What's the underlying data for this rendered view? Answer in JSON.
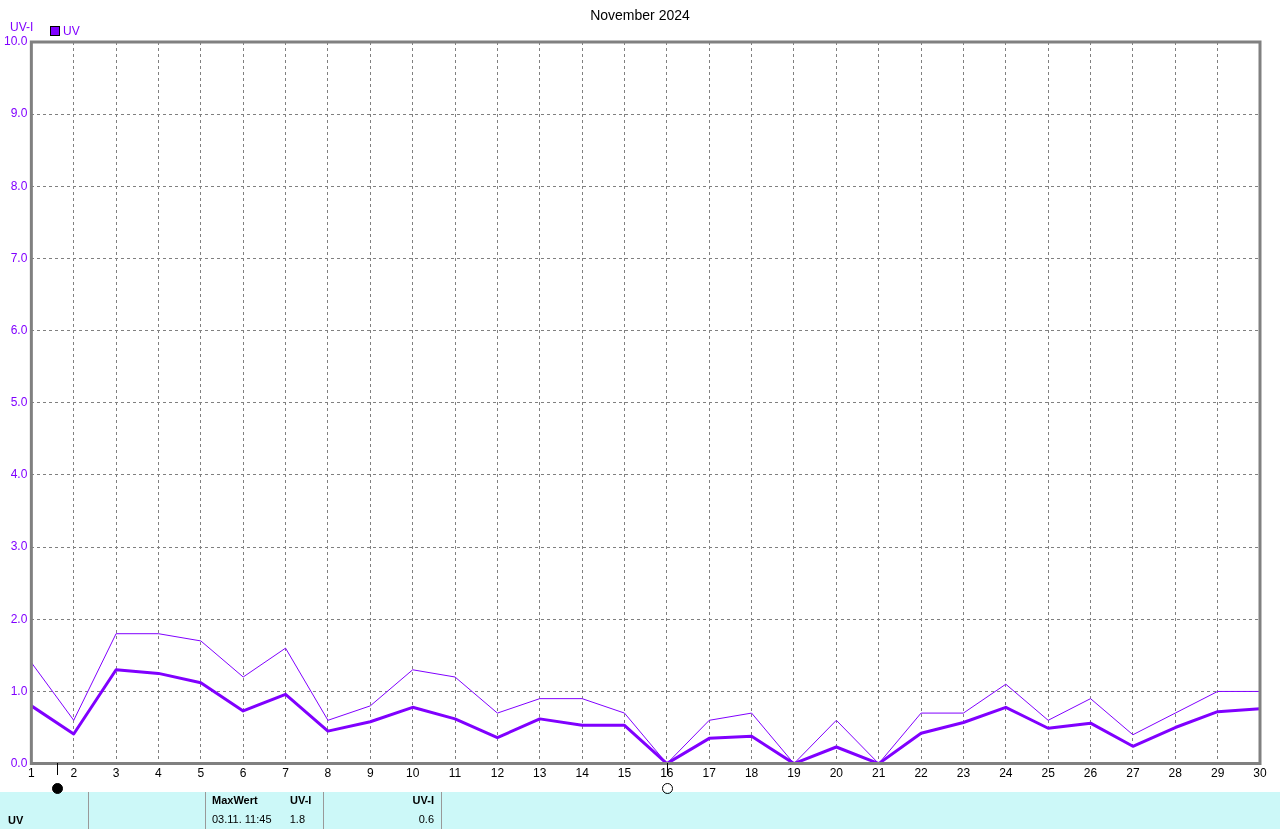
{
  "chart_data": {
    "type": "line",
    "title": "November 2024",
    "ylabel": "UV-I",
    "x": [
      1,
      2,
      3,
      4,
      5,
      6,
      7,
      8,
      9,
      10,
      11,
      12,
      13,
      14,
      15,
      16,
      17,
      18,
      19,
      20,
      21,
      22,
      23,
      24,
      25,
      26,
      27,
      28,
      29,
      30
    ],
    "series": [
      {
        "name": "UV",
        "color": "#8000ff",
        "values": [
          0.8,
          0.41,
          1.3,
          1.25,
          1.12,
          0.73,
          0.96,
          0.45,
          0.58,
          0.78,
          0.62,
          0.36,
          0.62,
          0.53,
          0.53,
          0,
          0.35,
          0.38,
          0,
          0.23,
          0,
          0.42,
          0.57,
          0.78,
          0.49,
          0.56,
          0.24,
          0.5,
          0.72,
          0.76
        ]
      },
      {
        "color": "#8000ff",
        "values": [
          1.4,
          0.6,
          1.8,
          1.8,
          1.7,
          1.2,
          1.6,
          0.6,
          0.8,
          1.3,
          1.2,
          0.7,
          0.9,
          0.9,
          0.7,
          0,
          0.6,
          0.7,
          0,
          0.6,
          0,
          0.7,
          0.7,
          1.1,
          0.6,
          0.9,
          0.4,
          0.7,
          1.0,
          1.0
        ]
      }
    ],
    "xlim": [
      1,
      30
    ],
    "xticks": [
      1,
      2,
      3,
      4,
      5,
      6,
      7,
      8,
      9,
      10,
      11,
      12,
      13,
      14,
      15,
      16,
      17,
      18,
      19,
      20,
      21,
      22,
      23,
      24,
      25,
      26,
      27,
      28,
      29,
      30
    ],
    "ylim": [
      0,
      10
    ],
    "yticks": [
      {
        "value": 0,
        "label": "0.0"
      },
      {
        "value": 1,
        "label": "1.0"
      },
      {
        "value": 2,
        "label": "2.0"
      },
      {
        "value": 3,
        "label": "3.0"
      },
      {
        "value": 4,
        "label": "4.0"
      },
      {
        "value": 5,
        "label": "5.0"
      },
      {
        "value": 6,
        "label": "6.0"
      },
      {
        "value": 7,
        "label": "7.0"
      },
      {
        "value": 8,
        "label": "8.0"
      },
      {
        "value": 9,
        "label": "9.0"
      },
      {
        "value": 10,
        "label": "10.0"
      }
    ],
    "grid": true,
    "legend": "top left",
    "marker": "none",
    "line_style": "solid",
    "annotations": [
      "UV",
      "MaxWert",
      "UV-I",
      "03.11.  11:45",
      "1.8",
      "UV-I",
      "0.6"
    ]
  }
}
